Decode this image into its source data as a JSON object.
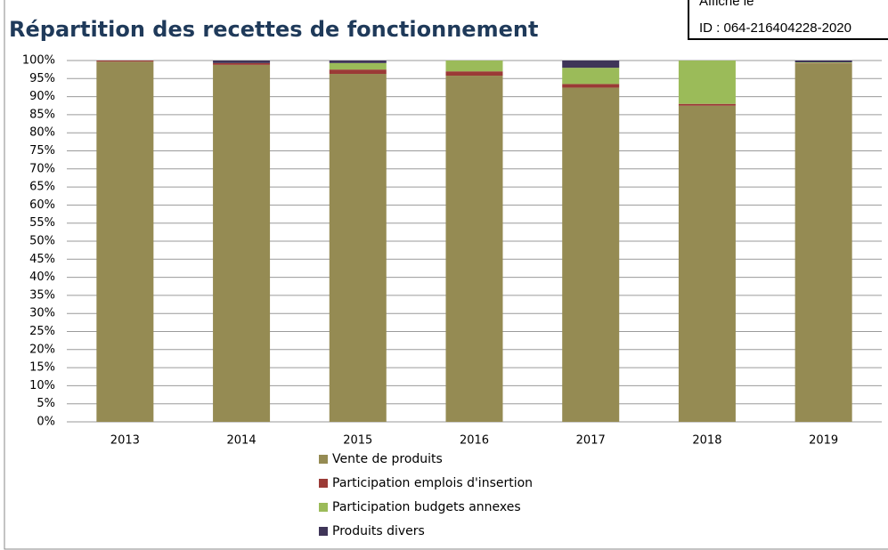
{
  "stamp": {
    "line1": "Affiché le",
    "line2": "ID : 064-216404228-2020"
  },
  "chart_data": {
    "type": "stacked_bar",
    "title": "Répartition des recettes de fonctionnement",
    "categories": [
      "2013",
      "2014",
      "2015",
      "2016",
      "2017",
      "2018",
      "2019"
    ],
    "series": [
      {
        "name": "Vente de produits",
        "color": "#958b53",
        "values": [
          99.7,
          98.8,
          96.3,
          95.8,
          92.5,
          87.5,
          99.2
        ]
      },
      {
        "name": "Participation emplois d'insertion",
        "color": "#9b3a36",
        "values": [
          0.3,
          0.5,
          1.2,
          1.2,
          1.0,
          0.5,
          0.1
        ]
      },
      {
        "name": "Participation budgets annexes",
        "color": "#9bbb59",
        "values": [
          0,
          0,
          1.8,
          3.0,
          4.5,
          12.0,
          0.2
        ]
      },
      {
        "name": "Produits divers",
        "color": "#3f3558",
        "values": [
          0,
          0.7,
          0.7,
          0,
          2.0,
          0,
          0.5
        ]
      }
    ],
    "ylim": [
      0,
      100
    ],
    "yticks": [
      {
        "value": 0,
        "label": "0%"
      },
      {
        "value": 5,
        "label": "5%"
      },
      {
        "value": 10,
        "label": "10%"
      },
      {
        "value": 15,
        "label": "15%"
      },
      {
        "value": 20,
        "label": "20%"
      },
      {
        "value": 25,
        "label": "25%"
      },
      {
        "value": 30,
        "label": "30%"
      },
      {
        "value": 35,
        "label": "35%"
      },
      {
        "value": 40,
        "label": "40%"
      },
      {
        "value": 45,
        "label": "45%"
      },
      {
        "value": 50,
        "label": "50%"
      },
      {
        "value": 55,
        "label": "55%"
      },
      {
        "value": 60,
        "label": "60%"
      },
      {
        "value": 65,
        "label": "65%"
      },
      {
        "value": 70,
        "label": "70%"
      },
      {
        "value": 75,
        "label": "75%"
      },
      {
        "value": 80,
        "label": "80%"
      },
      {
        "value": 85,
        "label": "85%"
      },
      {
        "value": 90,
        "label": "90%"
      },
      {
        "value": 95,
        "label": "95%"
      },
      {
        "value": 100,
        "label": "100%"
      }
    ],
    "grid": true,
    "legend": "bottom"
  }
}
